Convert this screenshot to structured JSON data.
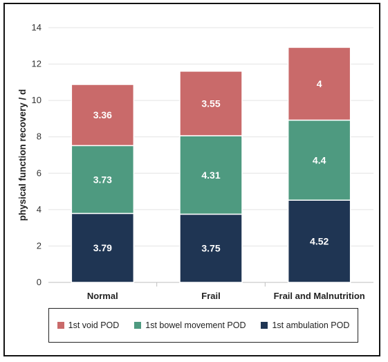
{
  "chart_data": {
    "type": "bar",
    "stacked": true,
    "categories": [
      "Normal",
      "Frail",
      "Frail and Malnutrition"
    ],
    "series": [
      {
        "name": "1st ambulation POD",
        "values": [
          3.79,
          3.75,
          4.52
        ],
        "labels": [
          "3.79",
          "3.75",
          "4.52"
        ],
        "color": "#1f3553"
      },
      {
        "name": "1st bowel movement POD",
        "values": [
          3.73,
          4.31,
          4.4
        ],
        "labels": [
          "3.73",
          "4.31",
          "4.4"
        ],
        "color": "#4e9a80"
      },
      {
        "name": "1st void POD",
        "values": [
          3.36,
          3.55,
          4
        ],
        "labels": [
          "3.36",
          "3.55",
          "4"
        ],
        "color": "#c96a6a"
      }
    ],
    "legend_order": [
      2,
      1,
      0
    ],
    "xlabel": "",
    "ylabel": "physical function recovery / d",
    "ylim": [
      0,
      14
    ],
    "yticks": [
      "0",
      "2",
      "4",
      "6",
      "8",
      "10",
      "12",
      "14"
    ],
    "grid": true,
    "legend": "bottom"
  }
}
